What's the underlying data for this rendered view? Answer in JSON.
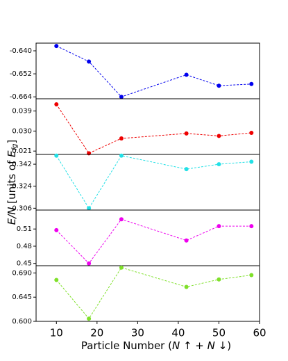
{
  "chart_data": {
    "type": "line",
    "xlabel": "Particle Number (N ↑ + N ↓)",
    "ylabel": "E/N [units of E_fg]",
    "xlim": [
      5,
      60
    ],
    "x_ticks": [
      10,
      20,
      30,
      40,
      50,
      60
    ],
    "x": [
      10,
      18,
      26,
      42,
      50,
      58
    ],
    "panels": [
      {
        "color": "#0000ee",
        "values": [
          -0.6375,
          -0.6456,
          -0.664,
          -0.6525,
          -0.6582,
          -0.6573
        ],
        "ylim": [
          -0.665,
          -0.636
        ],
        "y_ticks": [
          -0.64,
          -0.652,
          -0.664
        ],
        "y_tick_labels": [
          "-0.640",
          "-0.652",
          "-0.664"
        ]
      },
      {
        "color": "#ee0000",
        "values": [
          0.042,
          0.02,
          0.0267,
          0.0289,
          0.0278,
          0.0292
        ],
        "ylim": [
          0.0195,
          0.0445
        ],
        "y_ticks": [
          0.039,
          0.03,
          0.021
        ],
        "y_tick_labels": [
          "0.039",
          "0.030",
          "0.021"
        ]
      },
      {
        "color": "#22e0e6",
        "values": [
          0.349,
          0.306,
          0.349,
          0.338,
          0.342,
          0.344
        ],
        "ylim": [
          0.3045,
          0.35
        ],
        "y_ticks": [
          0.342,
          0.324,
          0.306
        ],
        "y_tick_labels": [
          "0.342",
          "0.324",
          "0.306"
        ]
      },
      {
        "color": "#ee00ee",
        "values": [
          0.508,
          0.45,
          0.527,
          0.49,
          0.515,
          0.515
        ],
        "ylim": [
          0.446,
          0.543
        ],
        "y_ticks": [
          0.51,
          0.48,
          0.45
        ],
        "y_tick_labels": [
          "0.51",
          "0.48",
          "0.45"
        ]
      },
      {
        "color": "#7fe02a",
        "values": [
          0.677,
          0.605,
          0.7,
          0.664,
          0.678,
          0.686
        ],
        "ylim": [
          0.6,
          0.7035
        ],
        "y_ticks": [
          0.69,
          0.645,
          0.6
        ],
        "y_tick_labels": [
          "0.690",
          "0.645",
          "0.600"
        ]
      }
    ],
    "grid": false,
    "marker": "circle",
    "linestyle": "dashed"
  }
}
